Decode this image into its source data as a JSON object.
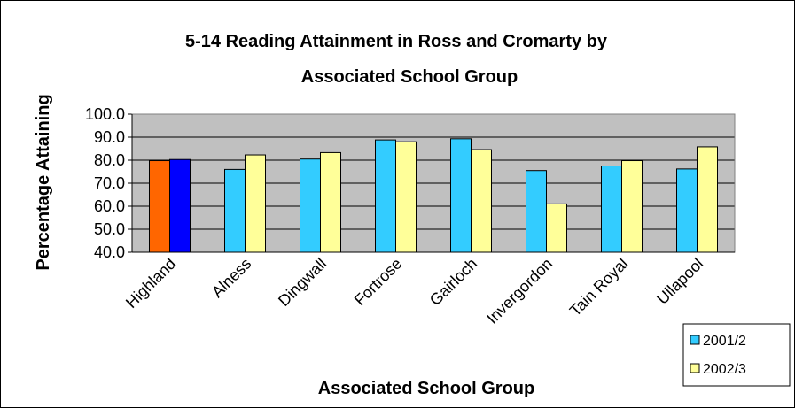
{
  "chart_data": {
    "type": "bar",
    "title_line1": "5-14 Reading Attainment in Ross and Cromarty by",
    "title_line2": "Associated School Group",
    "xlabel": "Associated School Group",
    "ylabel": "Percentage Attaining",
    "ylim": [
      40,
      100
    ],
    "yticks": [
      "40.0",
      "50.0",
      "60.0",
      "70.0",
      "80.0",
      "90.0",
      "100.0"
    ],
    "categories": [
      "Highland",
      "Alness",
      "Dingwall",
      "Fortrose",
      "Gairloch",
      "Invergordon",
      "Tain Royal",
      "Ullapool"
    ],
    "series": [
      {
        "name": "2001/2",
        "color": "#33CCFF",
        "values": [
          79.8,
          76.0,
          80.5,
          88.8,
          89.3,
          75.5,
          77.5,
          76.2
        ]
      },
      {
        "name": "2002/3",
        "color": "#FFFF99",
        "values": [
          80.3,
          82.3,
          83.3,
          88.0,
          84.6,
          61.0,
          79.8,
          85.8
        ]
      }
    ],
    "highlight": {
      "category": "Highland",
      "colors": [
        "#FF6600",
        "#0000FF"
      ]
    },
    "plot_background": "#C0C0C0",
    "grid": true,
    "legend_position": "bottom-right"
  }
}
